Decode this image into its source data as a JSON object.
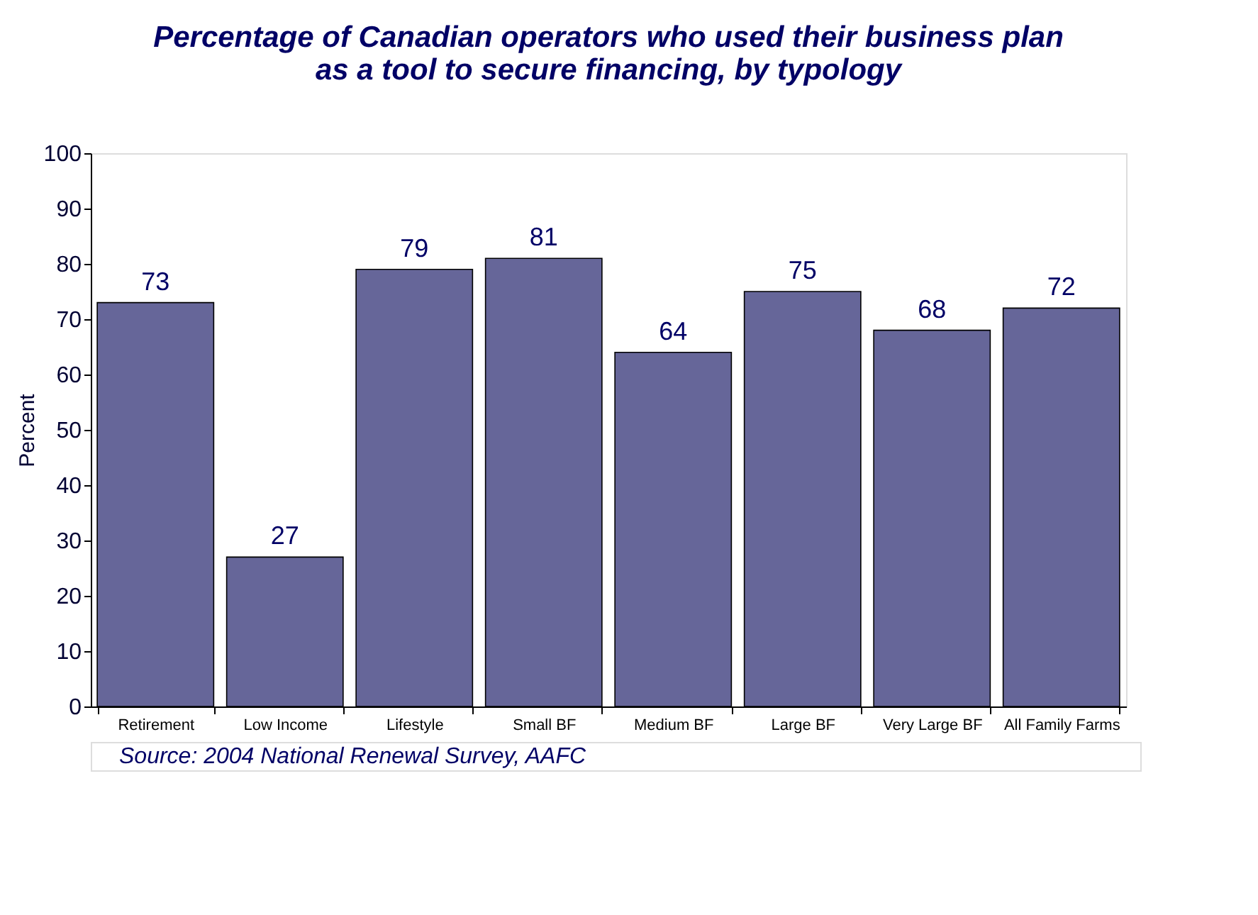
{
  "chart_data": {
    "type": "bar",
    "title": "Percentage of Canadian operators who used their business plan as a tool to secure financing, by typology",
    "ylabel": "Percent",
    "categories": [
      "Retirement",
      "Low Income",
      "Lifestyle",
      "Small BF",
      "Medium BF",
      "Large BF",
      "Very Large BF",
      "All Family Farms"
    ],
    "values": [
      73,
      27,
      79,
      81,
      64,
      75,
      68,
      72
    ],
    "color": "#666699",
    "ylim": [
      0,
      100
    ],
    "yticks": [
      0,
      10,
      20,
      30,
      40,
      50,
      60,
      70,
      80,
      90,
      100
    ],
    "grid": false,
    "data_labels": true,
    "annotations": [
      "Source: 2004 National Renewal Survey, AAFC"
    ]
  }
}
